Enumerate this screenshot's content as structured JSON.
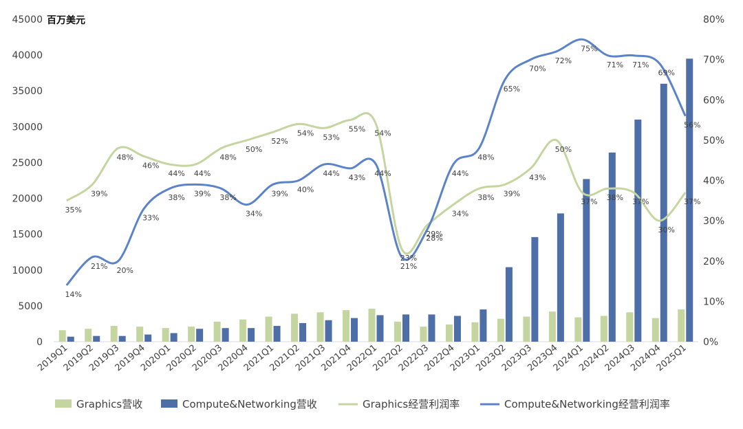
{
  "chart_data": {
    "type": "bar+line",
    "unit_label": "百万美元",
    "categories": [
      "2019Q1",
      "2019Q2",
      "2019Q3",
      "2019Q4",
      "2020Q1",
      "2020Q2",
      "2020Q3",
      "2020Q4",
      "2021Q1",
      "2021Q2",
      "2021Q3",
      "2021Q4",
      "2022Q1",
      "2022Q2",
      "2022Q3",
      "2022Q4",
      "2023Q1",
      "2023Q2",
      "2023Q3",
      "2023Q4",
      "2024Q1",
      "2024Q2",
      "2024Q3",
      "2024Q4",
      "2025Q1"
    ],
    "y_left": {
      "min": 0,
      "max": 45000,
      "ticks": [
        "0",
        "5000",
        "10000",
        "15000",
        "20000",
        "25000",
        "30000",
        "35000",
        "40000",
        "45000"
      ]
    },
    "y_right": {
      "min": 0,
      "max": 80,
      "ticks": [
        "0%",
        "10%",
        "20%",
        "30%",
        "40%",
        "50%",
        "60%",
        "70%",
        "80%"
      ]
    },
    "series": [
      {
        "name": "Graphics营收",
        "type": "bar",
        "color": "#c5d5a0",
        "values": [
          1600,
          1800,
          2200,
          2100,
          1900,
          2100,
          2800,
          3100,
          3500,
          3900,
          4100,
          4400,
          4600,
          2800,
          2100,
          2400,
          2700,
          3200,
          3500,
          4200,
          3400,
          3600,
          4100,
          3300,
          4500
        ]
      },
      {
        "name": "Compute&Networking营收",
        "type": "bar",
        "color": "#4e6ea8",
        "values": [
          700,
          800,
          800,
          1000,
          1200,
          1800,
          1900,
          1900,
          2200,
          2600,
          3000,
          3300,
          3700,
          3800,
          3800,
          3600,
          4500,
          10400,
          14600,
          17900,
          22700,
          26400,
          31000,
          36000,
          39500
        ]
      },
      {
        "name": "Graphics经营利润率",
        "type": "line",
        "color": "#c5d5a0",
        "values": [
          35,
          39,
          48,
          46,
          44,
          44,
          48,
          50,
          52,
          54,
          53,
          55,
          54,
          23,
          29,
          34,
          38,
          39,
          43,
          50,
          37,
          38,
          37,
          30,
          37
        ],
        "labels": [
          "35%",
          "39%",
          "48%",
          "46%",
          "44%",
          "44%",
          "48%",
          "50%",
          "52%",
          "54%",
          "53%",
          "55%",
          "54%",
          "23%",
          "29%",
          "34%",
          "38%",
          "39%",
          "43%",
          "50%",
          "37%",
          "38%",
          "37%",
          "30%",
          "37%"
        ]
      },
      {
        "name": "Compute&Networking经营利润率",
        "type": "line",
        "color": "#5b83c9",
        "values": [
          14,
          21,
          20,
          33,
          38,
          39,
          38,
          34,
          39,
          40,
          44,
          43,
          44,
          21,
          28,
          44,
          48,
          65,
          70,
          72,
          75,
          71,
          71,
          69,
          56
        ],
        "labels": [
          "14%",
          "21%",
          "20%",
          "33%",
          "38%",
          "39%",
          "38%",
          "34%",
          "39%",
          "40%",
          "44%",
          "43%",
          "44%",
          "21%",
          "28%",
          "44%",
          "48%",
          "65%",
          "70%",
          "72%",
          "75%",
          "71%",
          "71%",
          "69%",
          "56%"
        ]
      }
    ],
    "legend_position": "bottom",
    "grid": false
  }
}
